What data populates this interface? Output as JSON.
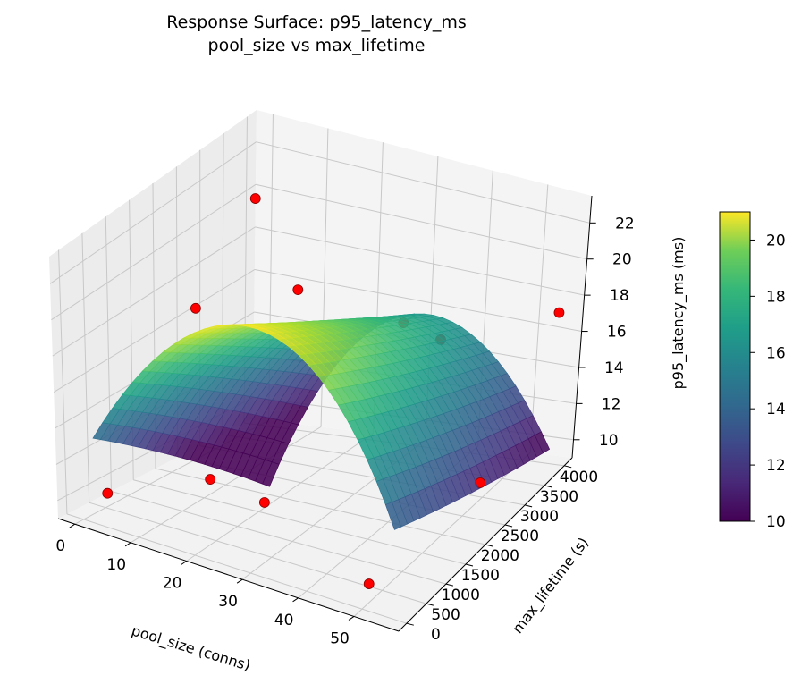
{
  "chart_data": {
    "type": "surface3d",
    "title": "Response Surface: p95_latency_ms",
    "subtitle": "pool_size vs max_lifetime",
    "xlabel": "pool_size (conns)",
    "ylabel": "max_lifetime (s)",
    "zlabel": "p95_latency_ms (ms)",
    "xlim": [
      -3,
      58
    ],
    "ylim": [
      -200,
      4200
    ],
    "zlim": [
      9,
      23.5
    ],
    "xticks": [
      0,
      10,
      20,
      30,
      40,
      50
    ],
    "yticks": [
      0,
      500,
      1000,
      1500,
      2000,
      2500,
      3000,
      3500,
      4000
    ],
    "zticks": [
      10,
      12,
      14,
      16,
      18,
      20,
      22
    ],
    "grid": true,
    "colormap": "viridis",
    "colorbar": {
      "min": 10,
      "max": 21,
      "ticks": [
        10,
        12,
        14,
        16,
        18,
        20
      ]
    },
    "surface": {
      "x_range": [
        2,
        55
      ],
      "y_range": [
        0,
        4000
      ],
      "model": "peak near pool_size 28, rising toward low max_lifetime"
    },
    "points": [
      {
        "x": 2,
        "y": 3600,
        "z": 20.5
      },
      {
        "x": 2,
        "y": 2300,
        "z": 17.0
      },
      {
        "x": 10,
        "y": 3600,
        "z": 16.5
      },
      {
        "x": 28,
        "y": 3800,
        "z": 15.5
      },
      {
        "x": 35,
        "y": 3800,
        "z": 15.0
      },
      {
        "x": 55,
        "y": 4000,
        "z": 17.2
      },
      {
        "x": 55,
        "y": 2200,
        "z": 11.5
      },
      {
        "x": 30,
        "y": 300,
        "z": 12.0
      },
      {
        "x": 15,
        "y": 1000,
        "z": 11.0
      },
      {
        "x": 50,
        "y": 150,
        "z": 9.9
      },
      {
        "x": 2,
        "y": 300,
        "z": 10.2
      }
    ]
  },
  "colors": {
    "marker_fill": "#ff0000",
    "marker_edge": "#8b0000",
    "pane": "#f2f2f2",
    "grid": "#c8c8c8"
  }
}
